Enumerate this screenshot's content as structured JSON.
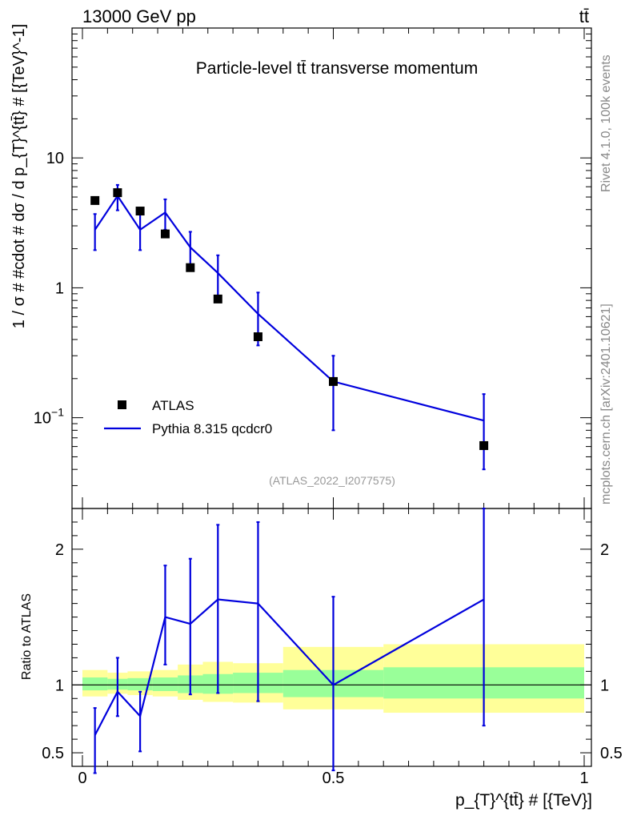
{
  "header": {
    "left": "13000 GeV pp",
    "right": "tt̄"
  },
  "side_labels": {
    "upper": "Rivet 4.1.0,  100k events",
    "lower": "mcplots.cern.ch [arXiv:2401.10621]"
  },
  "colors": {
    "mc": "#0000dd",
    "data": "#000000",
    "band_inner": "#99ff99",
    "band_outer": "#ffff99",
    "watermark": "#999999"
  },
  "chart_data": [
    {
      "type": "line",
      "title": "Particle-level tt̄ transverse momentum",
      "ylabel": "1 / σ # #cdot # dσ / d p_{T}^{tt̄} # [{TeV}^-1]",
      "xlabel": "",
      "yscale": "log",
      "xlim": [
        0,
        1
      ],
      "ylim": [
        0.02,
        100
      ],
      "y_tick_labels": [
        "10^-1",
        "1",
        "10"
      ],
      "y_tick_values": [
        0.1,
        1,
        10
      ],
      "watermark": "(ATLAS_2022_I2077575)",
      "legend": {
        "position": "lower-left",
        "entries": [
          "ATLAS",
          "Pythia 8.315 qcdcr0"
        ]
      },
      "series": [
        {
          "name": "ATLAS",
          "style": "markers",
          "x": [
            0.025,
            0.07,
            0.115,
            0.165,
            0.215,
            0.27,
            0.35,
            0.5,
            0.8
          ],
          "y": [
            4.7,
            5.4,
            3.9,
            2.6,
            1.43,
            0.82,
            0.42,
            0.19,
            0.061
          ]
        },
        {
          "name": "Pythia 8.315 qcdcr0",
          "style": "line",
          "x": [
            0.025,
            0.07,
            0.115,
            0.165,
            0.215,
            0.27,
            0.35,
            0.5,
            0.8
          ],
          "y": [
            2.8,
            5.1,
            2.8,
            3.8,
            2.05,
            1.3,
            0.63,
            0.19,
            0.095
          ],
          "err_low": [
            1.95,
            3.95,
            1.95,
            2.8,
            1.4,
            0.84,
            0.36,
            0.08,
            0.04
          ],
          "err_high": [
            3.7,
            6.2,
            3.7,
            4.8,
            2.7,
            1.78,
            0.92,
            0.3,
            0.152
          ]
        }
      ]
    },
    {
      "type": "line",
      "title": "",
      "ylabel": "Ratio to ATLAS",
      "xlabel": "p_{T}^{tt̄} # [{TeV}]",
      "xlim": [
        0,
        1
      ],
      "ylim": [
        0.4,
        2.3
      ],
      "x_tick_labels": [
        "0",
        "0.5",
        "1"
      ],
      "x_tick_values": [
        0,
        0.5,
        1
      ],
      "y_tick_labels": [
        "0.5",
        "1",
        "2"
      ],
      "y_tick_values": [
        0.5,
        1,
        2
      ],
      "reference_line": 1,
      "bands": {
        "edges": [
          0,
          0.05,
          0.09,
          0.14,
          0.19,
          0.24,
          0.3,
          0.4,
          0.6,
          1
        ],
        "inner_low": [
          0.96,
          0.965,
          0.96,
          0.955,
          0.94,
          0.935,
          0.94,
          0.91,
          0.9
        ],
        "inner_high": [
          1.055,
          1.045,
          1.05,
          1.055,
          1.07,
          1.08,
          1.09,
          1.11,
          1.13
        ],
        "outer_low": [
          0.915,
          0.935,
          0.925,
          0.915,
          0.89,
          0.875,
          0.87,
          0.82,
          0.795
        ],
        "outer_high": [
          1.11,
          1.09,
          1.1,
          1.11,
          1.15,
          1.17,
          1.16,
          1.28,
          1.3
        ]
      },
      "series": [
        {
          "name": "Pythia 8.315 qcdcr0 / ATLAS",
          "x": [
            0.025,
            0.07,
            0.115,
            0.165,
            0.215,
            0.27,
            0.35,
            0.5,
            0.8
          ],
          "y": [
            0.63,
            0.95,
            0.77,
            1.5,
            1.45,
            1.63,
            1.6,
            1.0,
            1.63
          ],
          "err_low": [
            0.35,
            0.77,
            0.51,
            1.15,
            0.93,
            0.94,
            0.88,
            0.37,
            0.7
          ],
          "err_high": [
            0.83,
            1.2,
            0.95,
            1.88,
            1.93,
            2.18,
            2.2,
            1.65,
            2.33
          ]
        }
      ]
    }
  ]
}
